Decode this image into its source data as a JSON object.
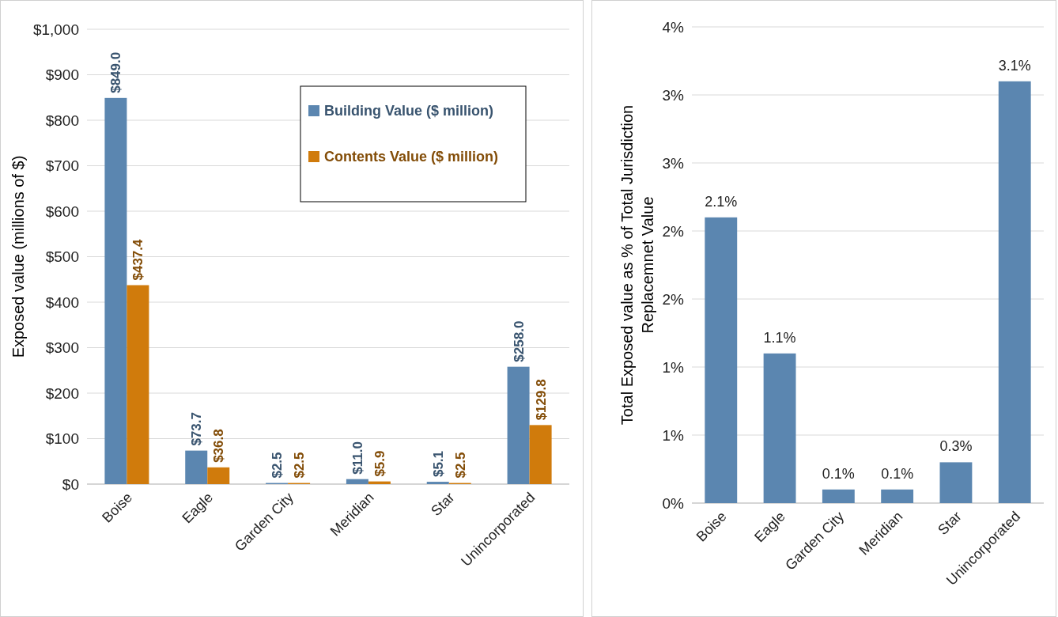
{
  "chart_data": [
    {
      "type": "bar",
      "ylabel": "Exposed value (millions of $)",
      "categories": [
        "Boise",
        "Eagle",
        "Garden City",
        "Meridian",
        "Star",
        "Unincorporated"
      ],
      "series": [
        {
          "name": "Building Value ($ million)",
          "color": "#5b86b0",
          "values": [
            849.0,
            73.7,
            2.5,
            11.0,
            5.1,
            258.0
          ],
          "value_labels": [
            "$849.0",
            "$73.7",
            "$2.5",
            "$11.0",
            "$5.1",
            "$258.0"
          ]
        },
        {
          "name": "Contents Value ($ million)",
          "color": "#d07b0c",
          "values": [
            437.4,
            36.8,
            2.5,
            5.9,
            2.5,
            129.8
          ],
          "value_labels": [
            "$437.4",
            "$36.8",
            "$2.5",
            "$5.9",
            "$2.5",
            "$129.8"
          ]
        }
      ],
      "ylim": [
        0,
        1000
      ],
      "yticks": [
        {
          "value": 0,
          "label": "$0"
        },
        {
          "value": 100,
          "label": "$100"
        },
        {
          "value": 200,
          "label": "$200"
        },
        {
          "value": 300,
          "label": "$300"
        },
        {
          "value": 400,
          "label": "$400"
        },
        {
          "value": 500,
          "label": "$500"
        },
        {
          "value": 600,
          "label": "$600"
        },
        {
          "value": 700,
          "label": "$700"
        },
        {
          "value": 800,
          "label": "$800"
        },
        {
          "value": 900,
          "label": "$900"
        },
        {
          "value": 1000,
          "label": "$1,000"
        }
      ],
      "grid": "y",
      "legend": "top right"
    },
    {
      "type": "bar",
      "ylabel": "Total Exposed value as % of Total Jurisdiction Replacemnet Value",
      "categories": [
        "Boise",
        "Eagle",
        "Garden City",
        "Meridian",
        "Star",
        "Unincorporated"
      ],
      "series": [
        {
          "color": "#5b86b0",
          "values": [
            2.1,
            1.1,
            0.1,
            0.1,
            0.3,
            3.1
          ],
          "value_labels": [
            "2.1%",
            "1.1%",
            "0.1%",
            "0.1%",
            "0.3%",
            "3.1%"
          ]
        }
      ],
      "ylim": [
        0,
        3.5
      ],
      "yticks": [
        {
          "value": 0,
          "label": "0%"
        },
        {
          "value": 0.5,
          "label": "1%"
        },
        {
          "value": 1,
          "label": "1%"
        },
        {
          "value": 1.5,
          "label": "2%"
        },
        {
          "value": 2,
          "label": "2%"
        },
        {
          "value": 2.5,
          "label": "3%"
        },
        {
          "value": 3,
          "label": "3%"
        },
        {
          "value": 3.5,
          "label": "4%"
        }
      ],
      "grid": "y"
    }
  ]
}
